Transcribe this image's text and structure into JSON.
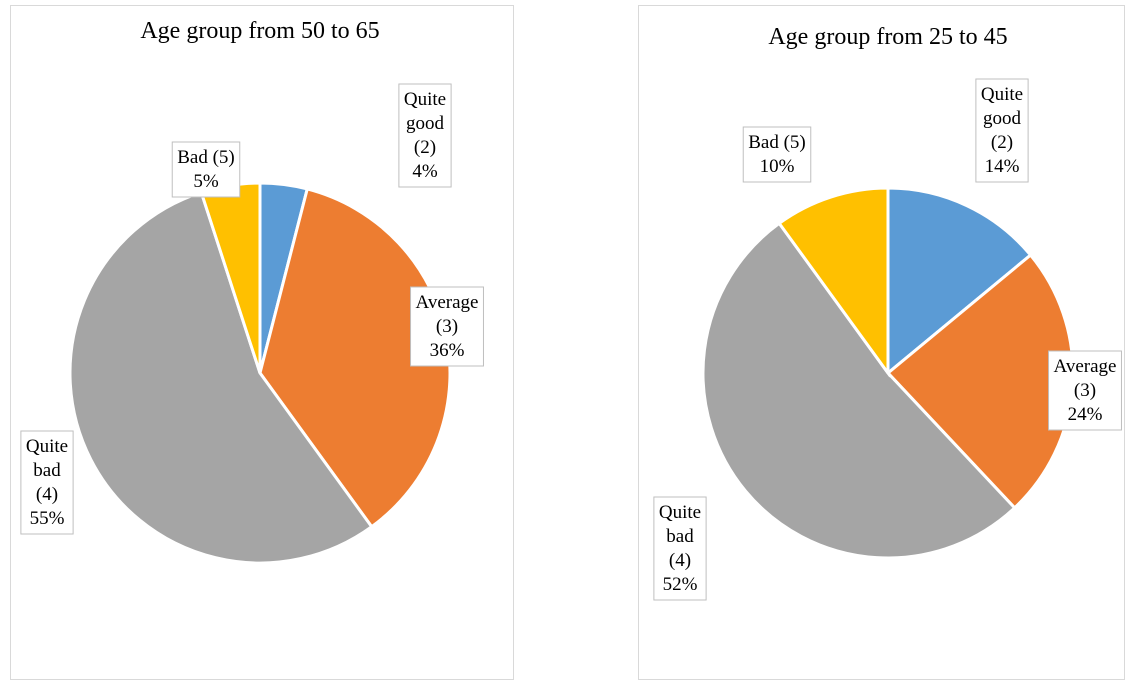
{
  "chart_data": [
    {
      "type": "pie",
      "title": "Age group from 50 to 65",
      "categories": [
        "Quite good (2)",
        "Average (3)",
        "Quite bad (4)",
        "Bad (5)"
      ],
      "values": [
        4,
        36,
        55,
        5
      ],
      "value_labels": [
        "4%",
        "36%",
        "55%",
        "5%"
      ],
      "colors": [
        "#5b9bd5",
        "#ed7d31",
        "#a5a5a5",
        "#ffc000"
      ]
    },
    {
      "type": "pie",
      "title": "Age group from 25 to 45",
      "categories": [
        "Quite good (2)",
        "Average (3)",
        "Quite bad (4)",
        "Bad (5)"
      ],
      "values": [
        14,
        24,
        52,
        10
      ],
      "value_labels": [
        "14%",
        "24%",
        "52%",
        "10%"
      ],
      "colors": [
        "#5b9bd5",
        "#ed7d31",
        "#a5a5a5",
        "#ffc000"
      ]
    }
  ]
}
